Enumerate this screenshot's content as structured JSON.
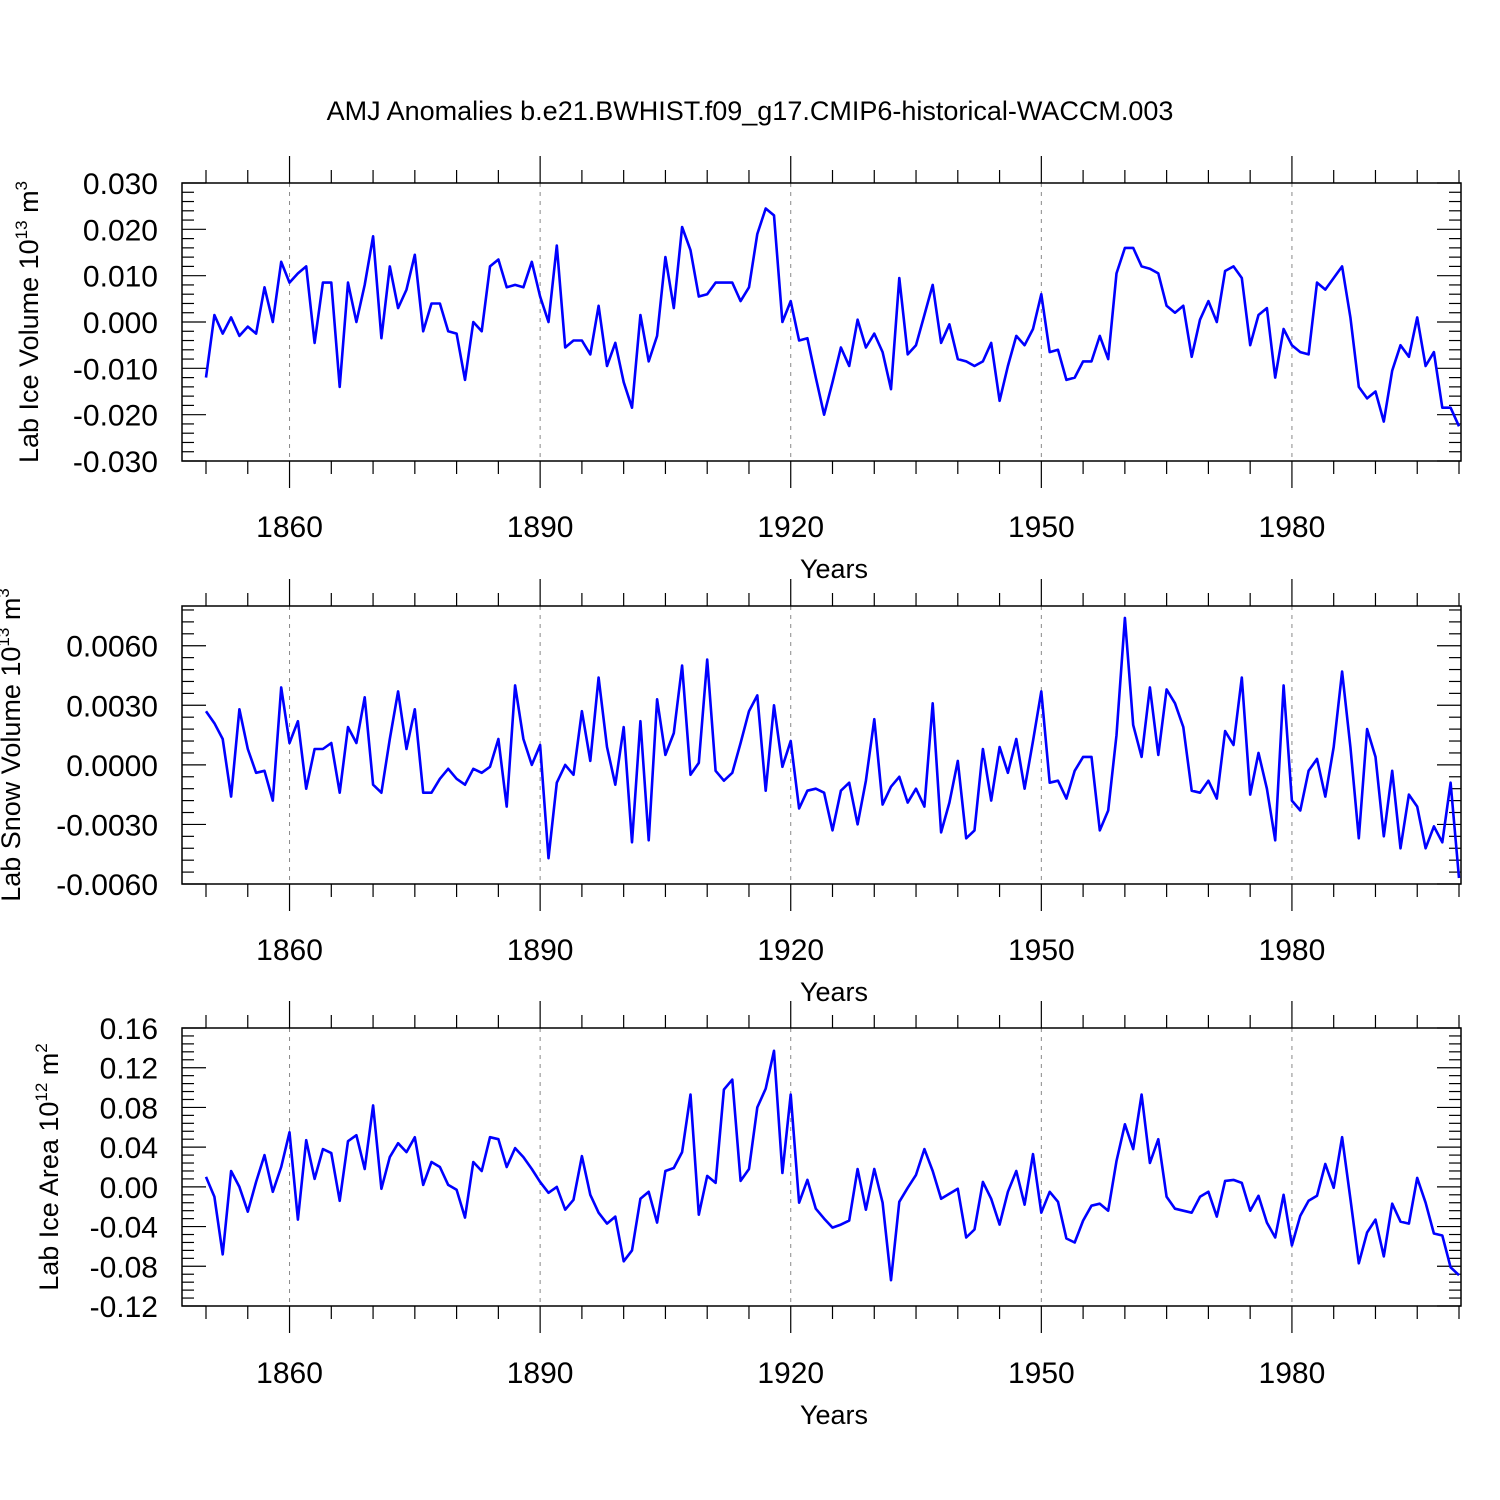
{
  "title": "AMJ Anomalies b.e21.BWHIST.f09_g17.CMIP6-historical-WACCM.003",
  "colors": {
    "line": "#0000ff",
    "axis": "#000000",
    "grid": "#888888"
  },
  "chart_data": [
    {
      "type": "line",
      "ylabel": "Lab Ice Volume 10",
      "ylabel_exp": "13",
      "ylabel_unit": " m",
      "ylabel_unit_exp": "3",
      "xlabel": "Years",
      "xlim": [
        1850,
        2000
      ],
      "ylim": [
        -0.03,
        0.03
      ],
      "yticks": [
        -0.03,
        -0.02,
        -0.01,
        0.0,
        0.01,
        0.02,
        0.03
      ],
      "ytick_labels": [
        "-0.030",
        "-0.020",
        "-0.010",
        "0.000",
        "0.010",
        "0.020",
        "0.030"
      ],
      "xticks": [
        1860,
        1890,
        1920,
        1950,
        1980
      ],
      "xtick_labels": [
        "1860",
        "1890",
        "1920",
        "1950",
        "1980"
      ],
      "x_start": 1850,
      "series": [
        {
          "name": "Lab Ice Volume",
          "values": [
            -0.012,
            0.0015,
            -0.0025,
            0.001,
            -0.003,
            -0.001,
            -0.0025,
            0.0075,
            0.0,
            0.013,
            0.0085,
            0.0105,
            0.012,
            -0.0045,
            0.0085,
            0.0085,
            -0.014,
            0.0085,
            0.0,
            0.008,
            0.0185,
            -0.0035,
            0.012,
            0.003,
            0.007,
            0.0145,
            -0.002,
            0.004,
            0.004,
            -0.002,
            -0.0025,
            -0.0125,
            0.0,
            -0.002,
            0.012,
            0.0135,
            0.0075,
            0.008,
            0.0075,
            0.013,
            0.0055,
            0.0,
            0.0165,
            -0.0055,
            -0.004,
            -0.004,
            -0.007,
            0.0035,
            -0.0095,
            -0.0045,
            -0.013,
            -0.0185,
            0.0015,
            -0.0085,
            -0.003,
            0.014,
            0.003,
            0.0205,
            0.0155,
            0.0055,
            0.006,
            0.0085,
            0.0085,
            0.0085,
            0.0045,
            0.0075,
            0.019,
            0.0245,
            0.023,
            0.0,
            0.0045,
            -0.004,
            -0.0035,
            -0.012,
            -0.02,
            -0.013,
            -0.0055,
            -0.0095,
            0.0005,
            -0.0055,
            -0.0025,
            -0.0065,
            -0.0145,
            0.0095,
            -0.007,
            -0.005,
            0.0015,
            0.008,
            -0.0045,
            -0.0005,
            -0.008,
            -0.0085,
            -0.0095,
            -0.0085,
            -0.0045,
            -0.017,
            -0.0095,
            -0.003,
            -0.005,
            -0.0015,
            0.006,
            -0.0065,
            -0.006,
            -0.0125,
            -0.012,
            -0.0085,
            -0.0085,
            -0.003,
            -0.008,
            0.0105,
            0.016,
            0.016,
            0.012,
            0.0115,
            0.0105,
            0.0035,
            0.002,
            0.0035,
            -0.0075,
            0.0005,
            0.0045,
            0.0,
            0.011,
            0.012,
            0.0095,
            -0.005,
            0.0015,
            0.003,
            -0.012,
            -0.0015,
            -0.005,
            -0.0065,
            -0.007,
            0.0085,
            0.007,
            0.0095,
            0.012,
            0.001,
            -0.014,
            -0.0165,
            -0.015,
            -0.0215,
            -0.0105,
            -0.005,
            -0.0075,
            0.001,
            -0.0095,
            -0.0065,
            -0.0185,
            -0.0185,
            -0.0225
          ]
        }
      ]
    },
    {
      "type": "line",
      "ylabel": "Lab Snow Volume 10",
      "ylabel_exp": "13",
      "ylabel_unit": " m",
      "ylabel_unit_exp": "3",
      "xlabel": "Years",
      "xlim": [
        1850,
        2000
      ],
      "ylim": [
        -0.006,
        0.008
      ],
      "yticks": [
        -0.006,
        -0.003,
        0.0,
        0.003,
        0.006
      ],
      "ytick_labels": [
        "-0.0060",
        "-0.0030",
        "0.0000",
        "0.0030",
        "0.0060"
      ],
      "xticks": [
        1860,
        1890,
        1920,
        1950,
        1980
      ],
      "xtick_labels": [
        "1860",
        "1890",
        "1920",
        "1950",
        "1980"
      ],
      "x_start": 1850,
      "series": [
        {
          "name": "Lab Snow Volume",
          "values": [
            0.0027,
            0.0021,
            0.0013,
            -0.0016,
            0.0028,
            0.0008,
            -0.0004,
            -0.0003,
            -0.0018,
            0.0039,
            0.0011,
            0.0022,
            -0.0012,
            0.0008,
            0.0008,
            0.0011,
            -0.0014,
            0.0019,
            0.0011,
            0.0034,
            -0.001,
            -0.0014,
            0.0013,
            0.0037,
            0.0008,
            0.0028,
            -0.0014,
            -0.0014,
            -0.0007,
            -0.0002,
            -0.0007,
            -0.001,
            -0.0002,
            -0.0004,
            -0.0001,
            0.0013,
            -0.0021,
            0.004,
            0.0013,
            0.0,
            0.001,
            -0.0047,
            -0.0009,
            0.0,
            -0.0005,
            0.0027,
            0.0002,
            0.0044,
            0.0009,
            -0.001,
            0.0019,
            -0.0039,
            0.0022,
            -0.0038,
            0.0033,
            0.0005,
            0.0016,
            0.005,
            -0.0005,
            0.0001,
            0.0053,
            -0.0003,
            -0.0008,
            -0.0004,
            0.0011,
            0.0027,
            0.0035,
            -0.0013,
            0.003,
            -0.0001,
            0.0012,
            -0.0022,
            -0.0013,
            -0.0012,
            -0.0014,
            -0.0033,
            -0.0013,
            -0.0009,
            -0.003,
            -0.0008,
            0.0023,
            -0.002,
            -0.0011,
            -0.0006,
            -0.0019,
            -0.0012,
            -0.0021,
            0.0031,
            -0.0034,
            -0.0019,
            0.0002,
            -0.0037,
            -0.0033,
            0.0008,
            -0.0018,
            0.0009,
            -0.0004,
            0.0013,
            -0.0012,
            0.0012,
            0.0037,
            -0.0009,
            -0.0008,
            -0.0017,
            -0.0003,
            0.0004,
            0.0004,
            -0.0033,
            -0.0023,
            0.0015,
            0.0074,
            0.002,
            0.0004,
            0.0039,
            0.0005,
            0.0038,
            0.0031,
            0.0019,
            -0.0013,
            -0.0014,
            -0.0008,
            -0.0017,
            0.0017,
            0.001,
            0.0044,
            -0.0015,
            0.0006,
            -0.0012,
            -0.0038,
            0.004,
            -0.0018,
            -0.0023,
            -0.0003,
            0.0003,
            -0.0016,
            0.0009,
            0.0047,
            0.0009,
            -0.0037,
            0.0018,
            0.0004,
            -0.0036,
            -0.0003,
            -0.0042,
            -0.0015,
            -0.0021,
            -0.0042,
            -0.0031,
            -0.0039,
            -0.0009,
            -0.0057
          ]
        }
      ]
    },
    {
      "type": "line",
      "ylabel": "Lab Ice Area 10",
      "ylabel_exp": "12",
      "ylabel_unit": " m",
      "ylabel_unit_exp": "2",
      "xlabel": "Years",
      "xlim": [
        1850,
        2000
      ],
      "ylim": [
        -0.12,
        0.16
      ],
      "yticks": [
        -0.12,
        -0.08,
        -0.04,
        0.0,
        0.04,
        0.08,
        0.12,
        0.16
      ],
      "ytick_labels": [
        "-0.12",
        "-0.08",
        "-0.04",
        "0.00",
        "0.04",
        "0.08",
        "0.12",
        "0.16"
      ],
      "xticks": [
        1860,
        1890,
        1920,
        1950,
        1980
      ],
      "xtick_labels": [
        "1860",
        "1890",
        "1920",
        "1950",
        "1980"
      ],
      "x_start": 1850,
      "series": [
        {
          "name": "Lab Ice Area",
          "values": [
            0.01,
            -0.01,
            -0.068,
            0.016,
            0.0,
            -0.025,
            0.005,
            0.032,
            -0.005,
            0.02,
            0.055,
            -0.033,
            0.047,
            0.008,
            0.038,
            0.034,
            -0.014,
            0.046,
            0.052,
            0.018,
            0.082,
            -0.002,
            0.03,
            0.044,
            0.035,
            0.05,
            0.002,
            0.025,
            0.02,
            0.002,
            -0.003,
            -0.031,
            0.025,
            0.016,
            0.05,
            0.048,
            0.02,
            0.039,
            0.03,
            0.018,
            0.005,
            -0.006,
            0.0,
            -0.023,
            -0.013,
            0.031,
            -0.008,
            -0.026,
            -0.037,
            -0.03,
            -0.075,
            -0.064,
            -0.012,
            -0.005,
            -0.036,
            0.016,
            0.019,
            0.035,
            0.093,
            -0.028,
            0.011,
            0.004,
            0.098,
            0.108,
            0.006,
            0.018,
            0.08,
            0.099,
            0.137,
            0.014,
            0.093,
            -0.016,
            0.007,
            -0.022,
            -0.032,
            -0.041,
            -0.038,
            -0.034,
            0.018,
            -0.023,
            0.018,
            -0.016,
            -0.094,
            -0.015,
            -0.001,
            0.012,
            0.038,
            0.016,
            -0.012,
            -0.007,
            -0.002,
            -0.051,
            -0.043,
            0.005,
            -0.012,
            -0.038,
            -0.005,
            0.016,
            -0.018,
            0.033,
            -0.026,
            -0.005,
            -0.015,
            -0.052,
            -0.056,
            -0.034,
            -0.019,
            -0.017,
            -0.024,
            0.026,
            0.063,
            0.038,
            0.093,
            0.024,
            0.048,
            -0.01,
            -0.022,
            -0.024,
            -0.026,
            -0.01,
            -0.005,
            -0.03,
            0.006,
            0.007,
            0.004,
            -0.024,
            -0.009,
            -0.036,
            -0.051,
            -0.008,
            -0.059,
            -0.029,
            -0.014,
            -0.009,
            0.023,
            -0.001,
            0.05,
            -0.012,
            -0.077,
            -0.046,
            -0.033,
            -0.07,
            -0.017,
            -0.035,
            -0.037,
            0.009,
            -0.016,
            -0.047,
            -0.049,
            -0.081,
            -0.089
          ]
        }
      ]
    }
  ]
}
